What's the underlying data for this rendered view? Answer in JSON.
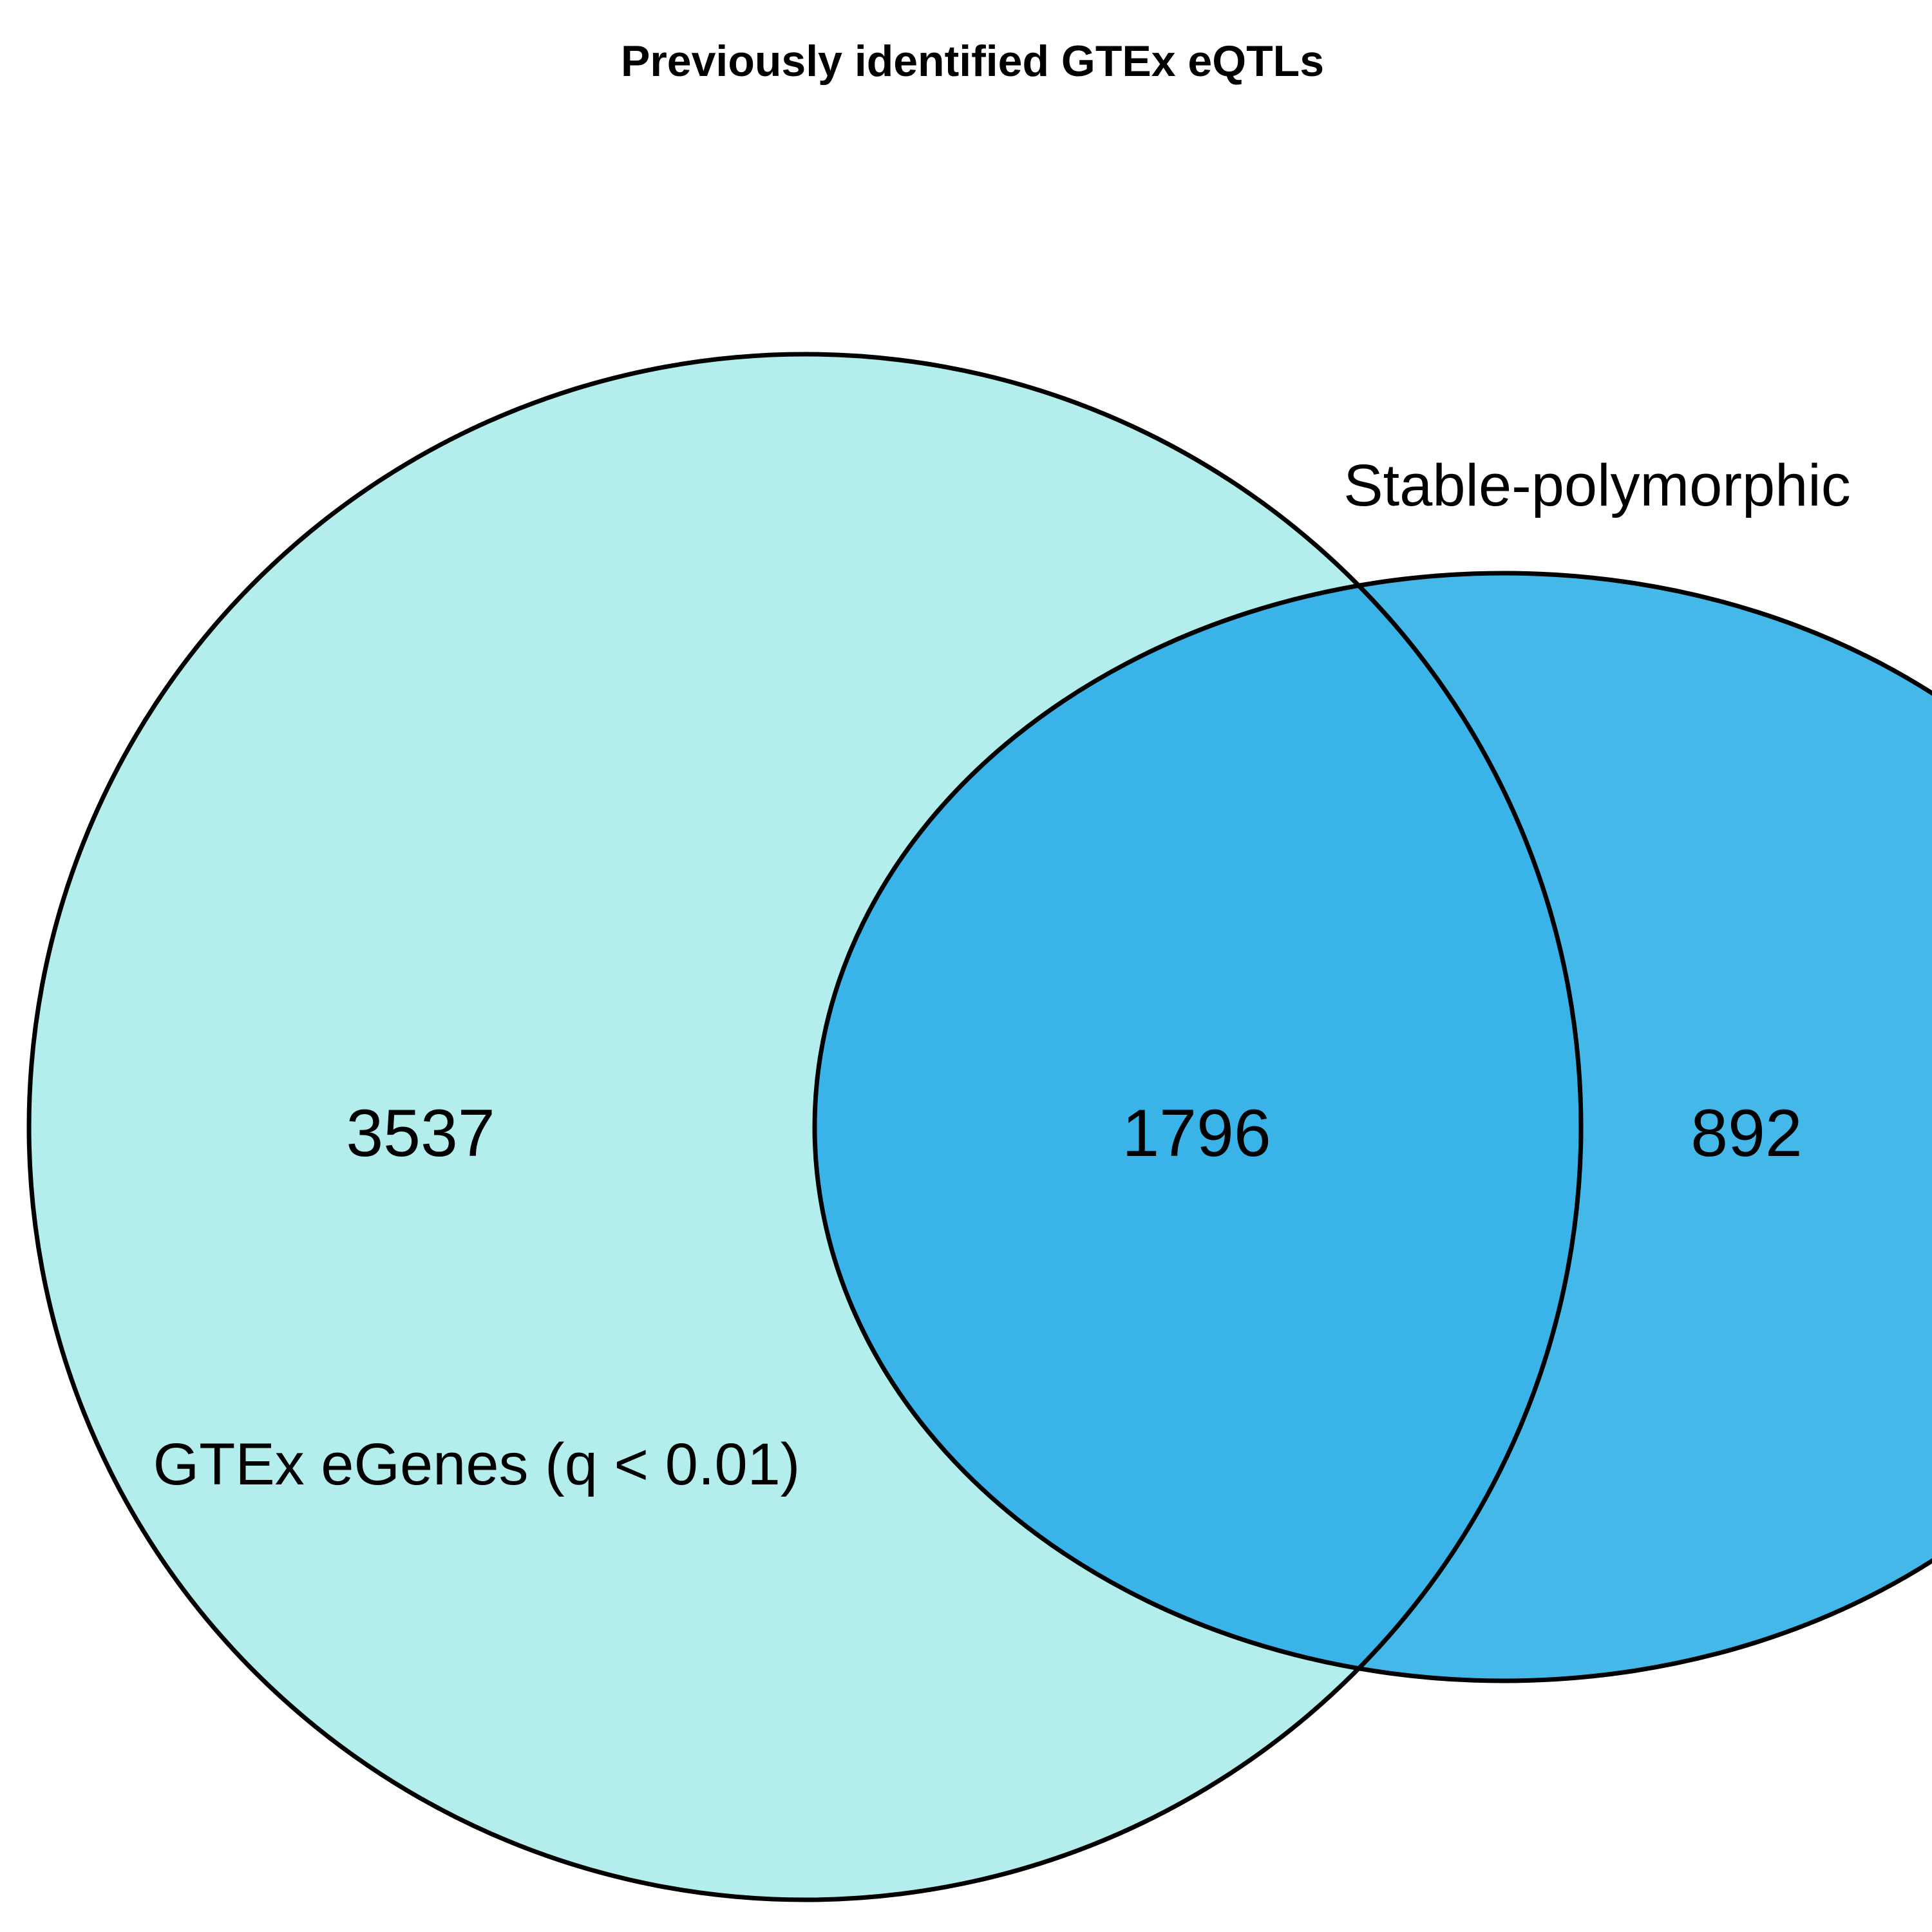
{
  "title": "Previously identified GTEx eQTLs",
  "sets": [
    {
      "name": "GTEx eGenes (q < 0.01)",
      "fill_color": "#b3eeed"
    },
    {
      "name": "Stable-polymorphic",
      "fill_color": "#45b8ea"
    }
  ],
  "regions": {
    "only_a": "3537",
    "a_and_b": "1796",
    "only_b": "892"
  },
  "intersection_color": "#3ab4e8",
  "outline_color": "#000000"
}
